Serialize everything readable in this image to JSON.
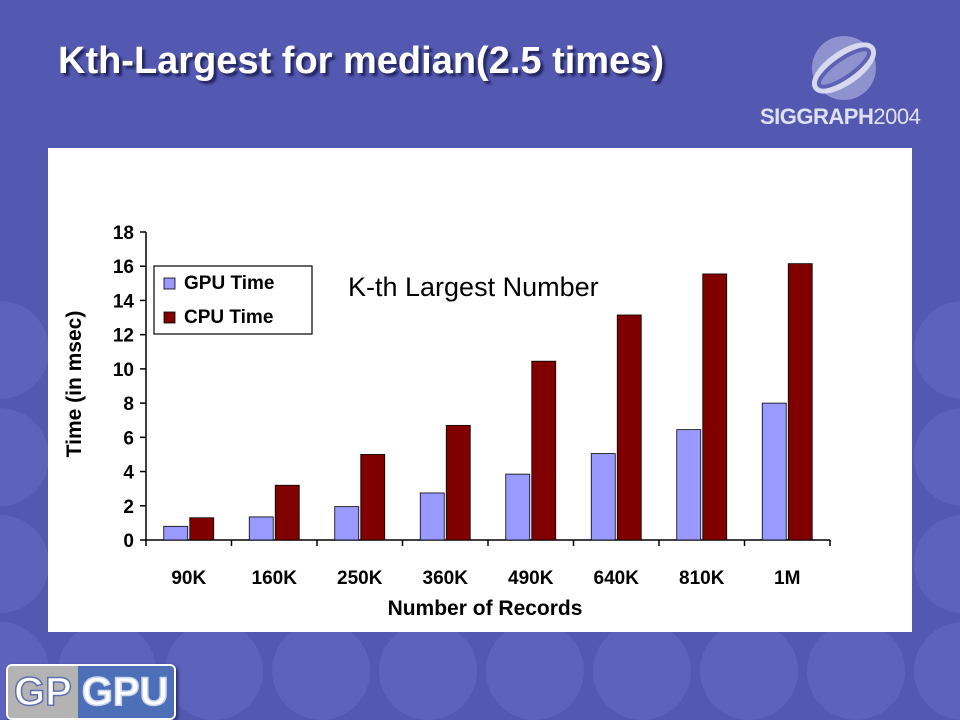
{
  "slide": {
    "title": "Kth-Largest for median(2.5 times)",
    "conference_logo": {
      "name": "SIGGRAPH",
      "year": "2004",
      "icon": "siggraph-swirl-logo"
    },
    "footer_badge": {
      "part1": "GP",
      "part2": "GPU"
    },
    "colors": {
      "background": "#5358b0",
      "circle": "#5d63ba"
    }
  },
  "chart_data": {
    "type": "bar",
    "title": "K-th Largest Number",
    "xlabel": "Number of Records",
    "ylabel": "Time (in msec)",
    "categories": [
      "90K",
      "160K",
      "250K",
      "360K",
      "490K",
      "640K",
      "810K",
      "1M"
    ],
    "series": [
      {
        "name": "GPU Time",
        "color": "#9999ff",
        "values": [
          0.8,
          1.35,
          1.95,
          2.75,
          3.85,
          5.05,
          6.45,
          8.0
        ]
      },
      {
        "name": "CPU Time",
        "color": "#800000",
        "values": [
          1.3,
          3.2,
          5.0,
          6.7,
          10.45,
          13.15,
          15.55,
          16.15
        ]
      }
    ],
    "ylim": [
      0,
      18
    ],
    "yticks": [
      0,
      2,
      4,
      6,
      8,
      10,
      12,
      14,
      16,
      18
    ],
    "grid": false,
    "legend": {
      "position": "top-left",
      "entries": [
        "GPU Time",
        "CPU Time"
      ]
    }
  }
}
